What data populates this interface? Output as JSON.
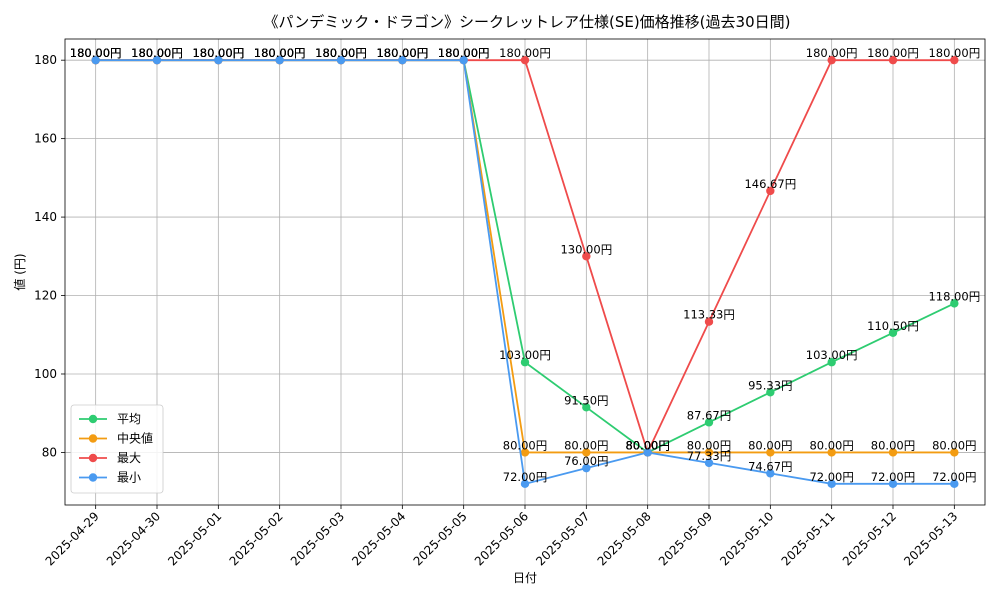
{
  "chart_data": {
    "type": "line",
    "title": "《パンデミック・ドラゴン》シークレットレア仕様(SE)価格推移(過去30日間)",
    "xlabel": "日付",
    "ylabel": "値 (円)",
    "ylim": [
      66.6,
      185.4
    ],
    "yticks": [
      80,
      100,
      120,
      140,
      160,
      180
    ],
    "grid": true,
    "legend_position": "lower-left",
    "label_suffix": "円",
    "x": [
      "2025-04-29",
      "2025-04-30",
      "2025-05-01",
      "2025-05-02",
      "2025-05-03",
      "2025-05-04",
      "2025-05-05",
      "2025-05-06",
      "2025-05-07",
      "2025-05-08",
      "2025-05-09",
      "2025-05-10",
      "2025-05-11",
      "2025-05-12",
      "2025-05-13"
    ],
    "series": [
      {
        "name": "平均",
        "color": "#2ecc71",
        "values": [
          180,
          180,
          180,
          180,
          180,
          180,
          180,
          103,
          91.5,
          80,
          87.67,
          95.33,
          103,
          110.5,
          118
        ]
      },
      {
        "name": "中央値",
        "color": "#f39c12",
        "values": [
          180,
          180,
          180,
          180,
          180,
          180,
          180,
          80,
          80,
          80,
          80,
          80,
          80,
          80,
          80
        ]
      },
      {
        "name": "最大",
        "color": "#ef4b4b",
        "values": [
          180,
          180,
          180,
          180,
          180,
          180,
          180,
          180,
          130,
          80,
          113.33,
          146.67,
          180,
          180,
          180
        ]
      },
      {
        "name": "最小",
        "color": "#4a9af0",
        "values": [
          180,
          180,
          180,
          180,
          180,
          180,
          180,
          72,
          76,
          80,
          77.33,
          74.67,
          72,
          72,
          72
        ]
      }
    ]
  }
}
